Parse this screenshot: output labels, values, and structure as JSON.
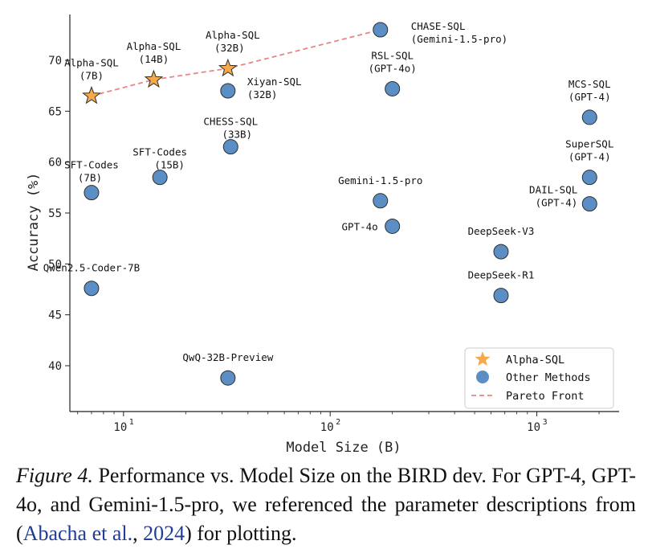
{
  "chart_data": {
    "type": "scatter",
    "xlabel": "Model Size (B)",
    "ylabel": "Accuracy (%)",
    "xscale": "log",
    "xlim": [
      5.5,
      2500
    ],
    "ylim": [
      35.5,
      74.5
    ],
    "x_ticks": [
      10,
      100,
      1000
    ],
    "x_tick_labels": [
      {
        "base": "10",
        "exp": "1"
      },
      {
        "base": "10",
        "exp": "2"
      },
      {
        "base": "10",
        "exp": "3"
      }
    ],
    "y_ticks": [
      40,
      45,
      50,
      55,
      60,
      65,
      70
    ],
    "grid": false,
    "legend_position": "bottom-right",
    "colors": {
      "alpha": "#f5a94a",
      "other": "#5b8ec5",
      "pareto": "#e88585",
      "edge": "#2e2e2e"
    },
    "legend": [
      {
        "label": "Alpha-SQL",
        "marker": "star"
      },
      {
        "label": "Other Methods",
        "marker": "circle"
      },
      {
        "label": "Pareto Front",
        "marker": "dashed-line"
      }
    ],
    "series": [
      {
        "name": "Alpha-SQL",
        "marker": "star",
        "points": [
          {
            "lines": [
              "Alpha-SQL",
              "(7B)"
            ],
            "x": 7,
            "y": 66.5
          },
          {
            "lines": [
              "Alpha-SQL",
              "(14B)"
            ],
            "x": 14,
            "y": 68.1
          },
          {
            "lines": [
              "Alpha-SQL",
              "(32B)"
            ],
            "x": 32,
            "y": 69.2
          }
        ]
      },
      {
        "name": "Other Methods",
        "marker": "circle",
        "points": [
          {
            "lines": [
              "CHASE-SQL",
              "(Gemini-1.5-pro)"
            ],
            "x": 175,
            "y": 73.0
          },
          {
            "lines": [
              "RSL-SQL",
              "(GPT-4o)"
            ],
            "x": 200,
            "y": 67.2
          },
          {
            "lines": [
              "Xiyan-SQL",
              "(32B)"
            ],
            "x": 32,
            "y": 67.0
          },
          {
            "lines": [
              "MCS-SQL",
              "(GPT-4)"
            ],
            "x": 1800,
            "y": 64.4
          },
          {
            "lines": [
              "CHESS-SQL",
              "(33B)"
            ],
            "x": 33,
            "y": 61.5
          },
          {
            "lines": [
              "SuperSQL",
              "(GPT-4)"
            ],
            "x": 1800,
            "y": 58.5
          },
          {
            "lines": [
              "SFT-Codes",
              "(15B)"
            ],
            "x": 15,
            "y": 58.5
          },
          {
            "lines": [
              "SFT-Codes",
              "(7B)"
            ],
            "x": 7,
            "y": 57.0
          },
          {
            "lines": [
              "DAIL-SQL",
              "(GPT-4)"
            ],
            "x": 1800,
            "y": 55.9
          },
          {
            "lines": [
              "Gemini-1.5-pro"
            ],
            "x": 175,
            "y": 56.2
          },
          {
            "lines": [
              "GPT-4o"
            ],
            "x": 200,
            "y": 53.7
          },
          {
            "lines": [
              "DeepSeek-V3"
            ],
            "x": 671,
            "y": 51.2
          },
          {
            "lines": [
              "DeepSeek-R1"
            ],
            "x": 671,
            "y": 46.9
          },
          {
            "lines": [
              "Qwen2.5-Coder-7B"
            ],
            "x": 7,
            "y": 47.6
          },
          {
            "lines": [
              "QwQ-32B-Preview"
            ],
            "x": 32,
            "y": 38.8
          }
        ]
      },
      {
        "name": "Pareto Front",
        "marker": "dashed-line",
        "x": [
          7,
          14,
          32,
          175
        ],
        "y": [
          66.5,
          68.1,
          69.2,
          73.0
        ]
      }
    ]
  },
  "caption": {
    "label": "Figure 4.",
    "text_before": " Performance vs.  Model Size on the BIRD dev.  For GPT-4, GPT-4o, and Gemini-1.5-pro, we referenced the parameter descriptions from (",
    "cite_author": "Abacha et al.",
    "cite_sep": ", ",
    "cite_year": "2024",
    "text_after": ") for plotting."
  }
}
